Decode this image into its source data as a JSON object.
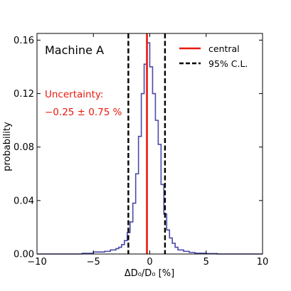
{
  "chart_data": {
    "type": "line",
    "title": "",
    "annotation": "Machine A",
    "uncertainty": {
      "label": "Uncertainty:",
      "value_text": "−0.25 ± 0.75 %",
      "color": "#e8190f"
    },
    "xlabel": "ΔD₀/D₀ [%]",
    "ylabel": "probability",
    "xlim": [
      -10,
      10
    ],
    "ylim": [
      0,
      0.165
    ],
    "x_ticks": [
      -10,
      -5,
      0,
      5,
      10
    ],
    "x_tick_labels": [
      "−10",
      "−5",
      "0",
      "5",
      "10"
    ],
    "y_ticks": [
      0,
      0.04,
      0.08,
      0.12,
      0.16
    ],
    "y_tick_labels": [
      "0.00",
      "0.04",
      "0.08",
      "0.12",
      "0.16"
    ],
    "grid": false,
    "legend": {
      "placement": "top-right",
      "entries": [
        {
          "label": "central",
          "color": "#e8190f",
          "style": "solid"
        },
        {
          "label": "95% C.L.",
          "color": "#000000",
          "style": "dashed"
        }
      ]
    },
    "histogram": {
      "color": "#4a4aa8",
      "bin_edges": [
        -6,
        -5,
        -4,
        -3.5,
        -3,
        -2.75,
        -2.5,
        -2.25,
        -2,
        -1.75,
        -1.5,
        -1.25,
        -1,
        -0.75,
        -0.5,
        -0.25,
        0,
        0.25,
        0.5,
        0.75,
        1,
        1.25,
        1.5,
        1.75,
        2,
        2.25,
        2.5,
        3,
        3.5,
        4,
        5,
        6
      ],
      "values": [
        0.0005,
        0.0015,
        0.002,
        0.003,
        0.004,
        0.005,
        0.007,
        0.01,
        0.016,
        0.024,
        0.038,
        0.06,
        0.088,
        0.12,
        0.142,
        0.158,
        0.14,
        0.12,
        0.1,
        0.082,
        0.052,
        0.03,
        0.018,
        0.012,
        0.008,
        0.005,
        0.003,
        0.002,
        0.0012,
        0.0006,
        0.0003
      ]
    },
    "central_line": {
      "x": -0.25,
      "color": "#e8190f"
    },
    "cl_lines": {
      "x": [
        -1.9,
        1.35
      ],
      "color": "#000000"
    }
  }
}
